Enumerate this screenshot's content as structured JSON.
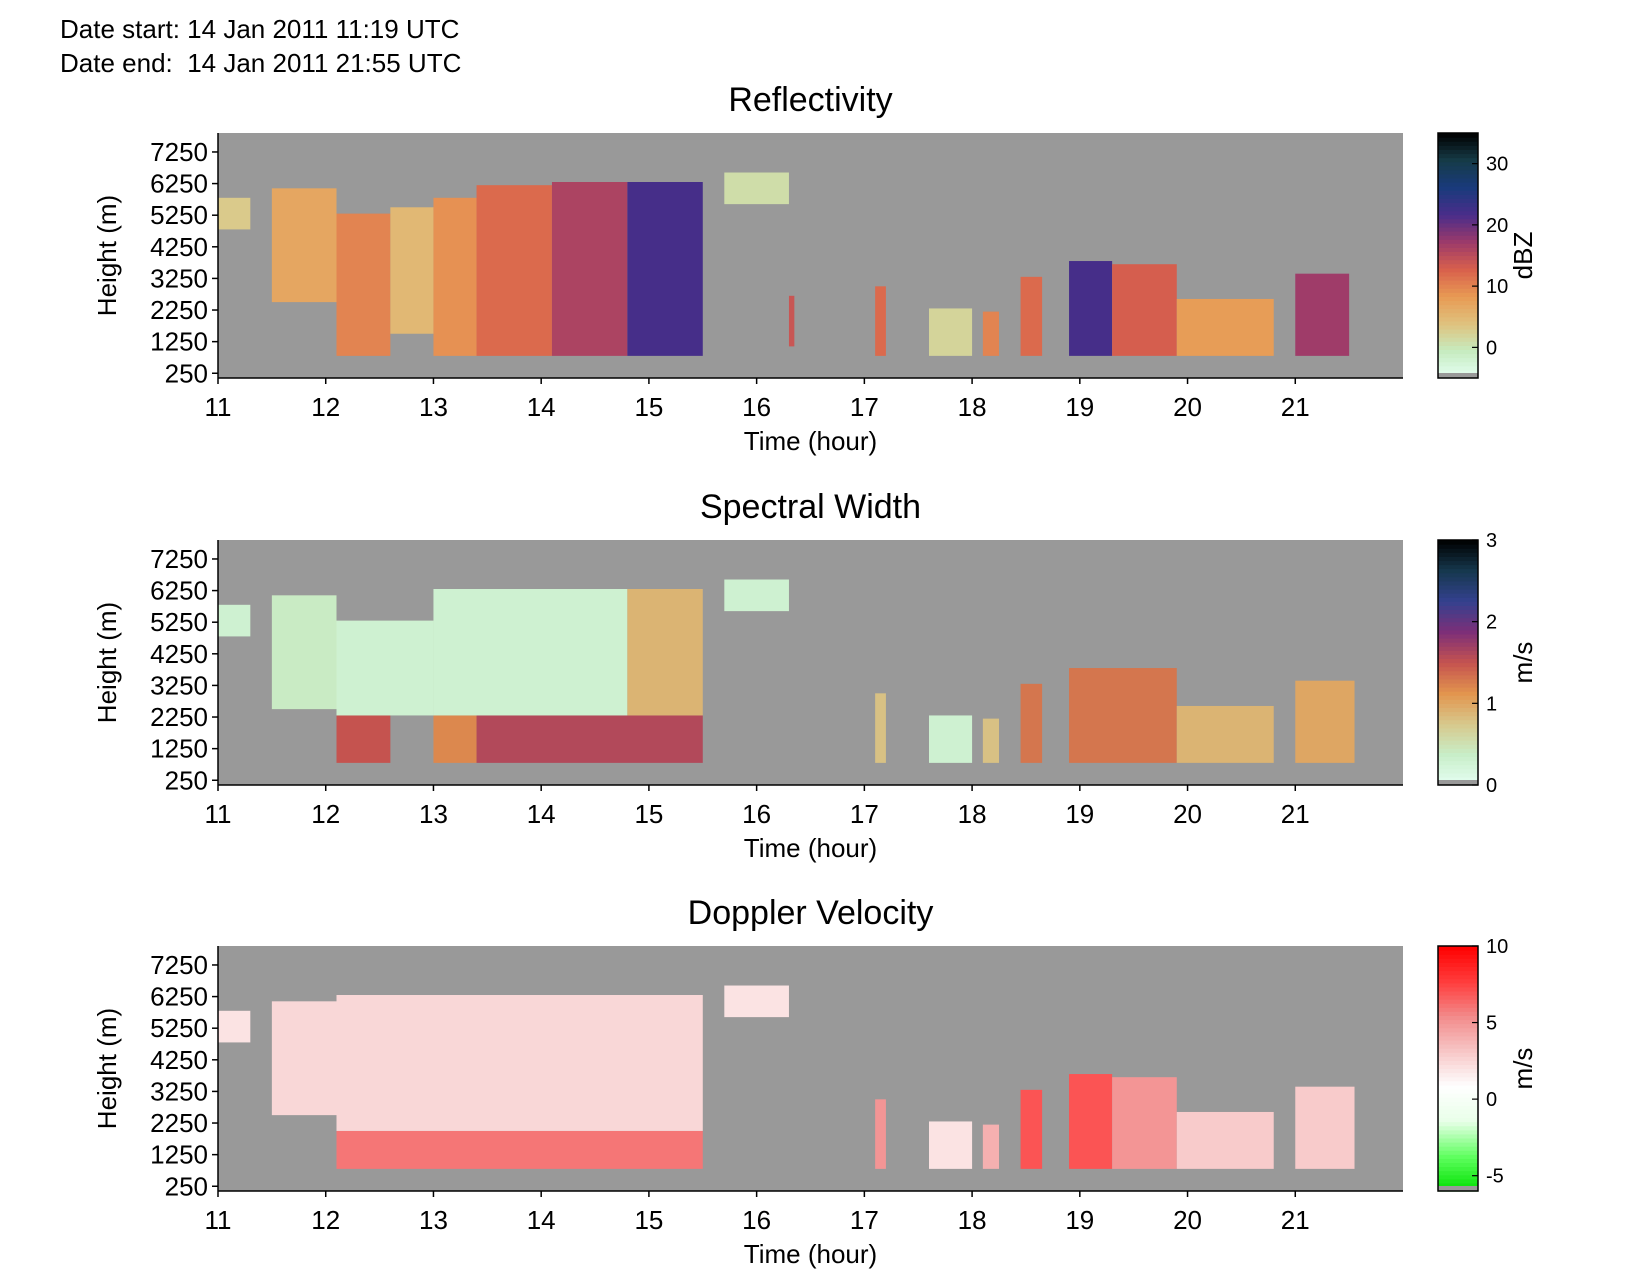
{
  "header": {
    "date_start_label": "Date start:",
    "date_start_value": "14 Jan 2011 11:19 UTC",
    "date_end_label": "Date end:",
    "date_end_value": "14 Jan 2011 21:55 UTC"
  },
  "colors": {
    "no_data": "#999999",
    "reflectivity_scale": [
      "#e6fff4",
      "#c6ecc0",
      "#dfc27e",
      "#e89a54",
      "#d8604c",
      "#9c3a6a",
      "#4a2d8a",
      "#193a7c",
      "#163b48",
      "#000000"
    ],
    "width_scale": [
      "#e6fff4",
      "#c8eec8",
      "#d7c88c",
      "#e2954e",
      "#c5534f",
      "#7d2f78",
      "#34418f",
      "#16384e",
      "#000000"
    ],
    "velocity_scale": [
      "#00e000",
      "#60ff60",
      "#e8ffe8",
      "#ffffff",
      "#f7c7c7",
      "#f28a8a",
      "#ff3b3b",
      "#ff0000"
    ]
  },
  "chart_data": [
    {
      "type": "heatmap",
      "title": "Reflectivity",
      "xlabel": "Time (hour)",
      "ylabel": "Height (m)",
      "x_ticks": [
        11,
        12,
        13,
        14,
        15,
        16,
        17,
        18,
        19,
        20,
        21
      ],
      "y_ticks": [
        250,
        1250,
        2250,
        3250,
        4250,
        5250,
        6250,
        7250
      ],
      "xlim": [
        11,
        22
      ],
      "ylim": [
        100,
        7850
      ],
      "colorbar": {
        "label": "dBZ",
        "ticks": [
          0,
          10,
          20,
          30
        ],
        "range": [
          -5,
          35
        ]
      },
      "echoes": [
        {
          "t0": 11.0,
          "t1": 11.3,
          "h0": 4800,
          "h1": 5800,
          "v": 3
        },
        {
          "t0": 11.5,
          "t1": 12.1,
          "h0": 2500,
          "h1": 6100,
          "v": 7
        },
        {
          "t0": 12.1,
          "t1": 12.6,
          "h0": 800,
          "h1": 5300,
          "v": 10
        },
        {
          "t0": 12.6,
          "t1": 13.0,
          "h0": 1500,
          "h1": 5500,
          "v": 5
        },
        {
          "t0": 13.0,
          "t1": 13.4,
          "h0": 800,
          "h1": 5800,
          "v": 9
        },
        {
          "t0": 13.4,
          "t1": 14.1,
          "h0": 800,
          "h1": 6200,
          "v": 12
        },
        {
          "t0": 14.1,
          "t1": 14.8,
          "h0": 800,
          "h1": 6300,
          "v": 16
        },
        {
          "t0": 14.8,
          "t1": 15.5,
          "h0": 800,
          "h1": 6300,
          "v": 22
        },
        {
          "t0": 15.7,
          "t1": 16.3,
          "h0": 5600,
          "h1": 6600,
          "v": 1
        },
        {
          "t0": 16.3,
          "t1": 16.35,
          "h0": 1100,
          "h1": 2700,
          "v": 14
        },
        {
          "t0": 17.1,
          "t1": 17.2,
          "h0": 800,
          "h1": 3000,
          "v": 12
        },
        {
          "t0": 17.6,
          "t1": 18.0,
          "h0": 800,
          "h1": 2300,
          "v": 2
        },
        {
          "t0": 18.1,
          "t1": 18.25,
          "h0": 800,
          "h1": 2200,
          "v": 10
        },
        {
          "t0": 18.45,
          "t1": 18.65,
          "h0": 800,
          "h1": 3300,
          "v": 12
        },
        {
          "t0": 18.9,
          "t1": 19.3,
          "h0": 800,
          "h1": 3800,
          "v": 22
        },
        {
          "t0": 19.3,
          "t1": 19.9,
          "h0": 800,
          "h1": 3700,
          "v": 13
        },
        {
          "t0": 19.9,
          "t1": 20.8,
          "h0": 800,
          "h1": 2600,
          "v": 8
        },
        {
          "t0": 21.0,
          "t1": 21.5,
          "h0": 800,
          "h1": 3400,
          "v": 17
        }
      ]
    },
    {
      "type": "heatmap",
      "title": "Spectral Width",
      "xlabel": "Time (hour)",
      "ylabel": "Height (m)",
      "x_ticks": [
        11,
        12,
        13,
        14,
        15,
        16,
        17,
        18,
        19,
        20,
        21
      ],
      "y_ticks": [
        250,
        1250,
        2250,
        3250,
        4250,
        5250,
        6250,
        7250
      ],
      "xlim": [
        11,
        22
      ],
      "ylim": [
        100,
        7850
      ],
      "colorbar": {
        "label": "m/s",
        "ticks": [
          0,
          1,
          2,
          3
        ],
        "range": [
          0,
          3
        ]
      },
      "echoes": [
        {
          "t0": 11.0,
          "t1": 11.3,
          "h0": 4800,
          "h1": 5800,
          "v": 0.3
        },
        {
          "t0": 11.5,
          "t1": 12.1,
          "h0": 2500,
          "h1": 6100,
          "v": 0.4
        },
        {
          "t0": 12.1,
          "t1": 12.6,
          "h0": 800,
          "h1": 2300,
          "v": 1.5
        },
        {
          "t0": 12.1,
          "t1": 13.0,
          "h0": 2300,
          "h1": 5300,
          "v": 0.3
        },
        {
          "t0": 13.0,
          "t1": 13.4,
          "h0": 800,
          "h1": 2300,
          "v": 1.2
        },
        {
          "t0": 13.4,
          "t1": 15.5,
          "h0": 800,
          "h1": 2300,
          "v": 1.6
        },
        {
          "t0": 13.0,
          "t1": 14.8,
          "h0": 2300,
          "h1": 6300,
          "v": 0.3
        },
        {
          "t0": 14.8,
          "t1": 15.5,
          "h0": 2300,
          "h1": 6300,
          "v": 0.9
        },
        {
          "t0": 15.7,
          "t1": 16.3,
          "h0": 5600,
          "h1": 6600,
          "v": 0.3
        },
        {
          "t0": 17.1,
          "t1": 17.2,
          "h0": 800,
          "h1": 3000,
          "v": 0.8
        },
        {
          "t0": 17.6,
          "t1": 18.0,
          "h0": 800,
          "h1": 2300,
          "v": 0.3
        },
        {
          "t0": 18.1,
          "t1": 18.25,
          "h0": 800,
          "h1": 2200,
          "v": 0.8
        },
        {
          "t0": 18.45,
          "t1": 18.65,
          "h0": 800,
          "h1": 3300,
          "v": 1.3
        },
        {
          "t0": 18.9,
          "t1": 19.9,
          "h0": 800,
          "h1": 3800,
          "v": 1.3
        },
        {
          "t0": 19.9,
          "t1": 20.8,
          "h0": 800,
          "h1": 2600,
          "v": 0.9
        },
        {
          "t0": 21.0,
          "t1": 21.55,
          "h0": 800,
          "h1": 3400,
          "v": 1.0
        }
      ]
    },
    {
      "type": "heatmap",
      "title": "Doppler Velocity",
      "xlabel": "Time (hour)",
      "ylabel": "Height (m)",
      "x_ticks": [
        11,
        12,
        13,
        14,
        15,
        16,
        17,
        18,
        19,
        20,
        21
      ],
      "y_ticks": [
        250,
        1250,
        2250,
        3250,
        4250,
        5250,
        6250,
        7250
      ],
      "xlim": [
        11,
        22
      ],
      "ylim": [
        100,
        7850
      ],
      "colorbar": {
        "label": "m/s",
        "ticks": [
          -5,
          0,
          5,
          10
        ],
        "range": [
          -6,
          10
        ]
      },
      "echoes": [
        {
          "t0": 11.0,
          "t1": 11.3,
          "h0": 4800,
          "h1": 5800,
          "v": 2
        },
        {
          "t0": 11.5,
          "t1": 12.1,
          "h0": 2500,
          "h1": 6100,
          "v": 2.5
        },
        {
          "t0": 12.1,
          "t1": 15.5,
          "h0": 800,
          "h1": 2000,
          "v": 6
        },
        {
          "t0": 12.1,
          "t1": 15.5,
          "h0": 2000,
          "h1": 6300,
          "v": 2.5
        },
        {
          "t0": 15.7,
          "t1": 16.3,
          "h0": 5600,
          "h1": 6600,
          "v": 2
        },
        {
          "t0": 17.1,
          "t1": 17.2,
          "h0": 800,
          "h1": 3000,
          "v": 5
        },
        {
          "t0": 17.6,
          "t1": 18.0,
          "h0": 800,
          "h1": 2300,
          "v": 2
        },
        {
          "t0": 18.1,
          "t1": 18.25,
          "h0": 800,
          "h1": 2200,
          "v": 4
        },
        {
          "t0": 18.45,
          "t1": 18.65,
          "h0": 800,
          "h1": 3300,
          "v": 7
        },
        {
          "t0": 18.9,
          "t1": 19.3,
          "h0": 800,
          "h1": 3800,
          "v": 7
        },
        {
          "t0": 19.3,
          "t1": 19.9,
          "h0": 800,
          "h1": 3700,
          "v": 5
        },
        {
          "t0": 19.9,
          "t1": 20.8,
          "h0": 800,
          "h1": 2600,
          "v": 3
        },
        {
          "t0": 21.0,
          "t1": 21.55,
          "h0": 800,
          "h1": 3400,
          "v": 3
        }
      ]
    }
  ]
}
